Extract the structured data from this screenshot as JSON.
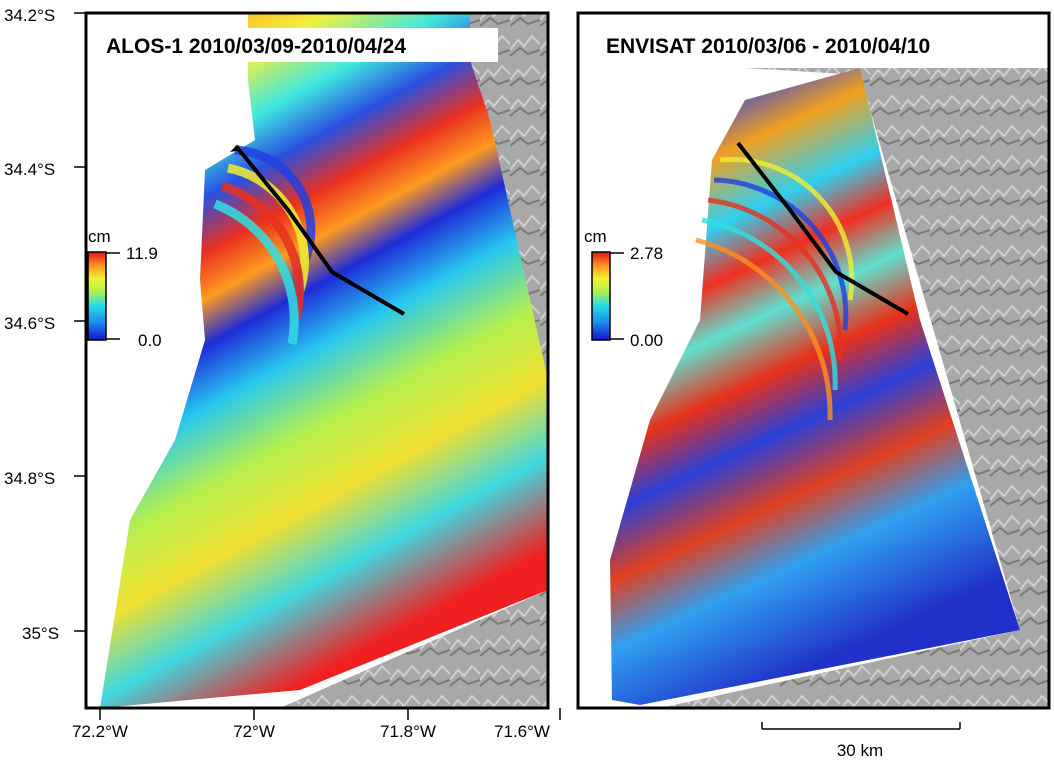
{
  "left_panel": {
    "title": "ALOS-1 2010/03/09-2010/04/24",
    "colorbar": {
      "unit": "cm",
      "max_label": "11.9",
      "min_label": "0.0"
    }
  },
  "right_panel": {
    "title": "ENVISAT 2010/03/06 - 2010/04/10",
    "colorbar": {
      "unit": "cm",
      "max_label": "2.78",
      "min_label": "0.00"
    }
  },
  "axes": {
    "lat_labels": [
      "34.2°S",
      "34.4°S",
      "34.6°S",
      "34.8°S",
      "35°S"
    ],
    "lon_labels": [
      "72.2°W",
      "72°W",
      "71.8°W",
      "71.6°W"
    ]
  },
  "scale_bar": {
    "label": "30 km"
  },
  "colors": {
    "colormap": [
      "#1a1ad8",
      "#1e8cf0",
      "#28e0e0",
      "#9cf060",
      "#f0f030",
      "#ff9a20",
      "#f02828",
      "#c81414"
    ],
    "terrain": "#9a9a9a",
    "fault": "#000000"
  }
}
